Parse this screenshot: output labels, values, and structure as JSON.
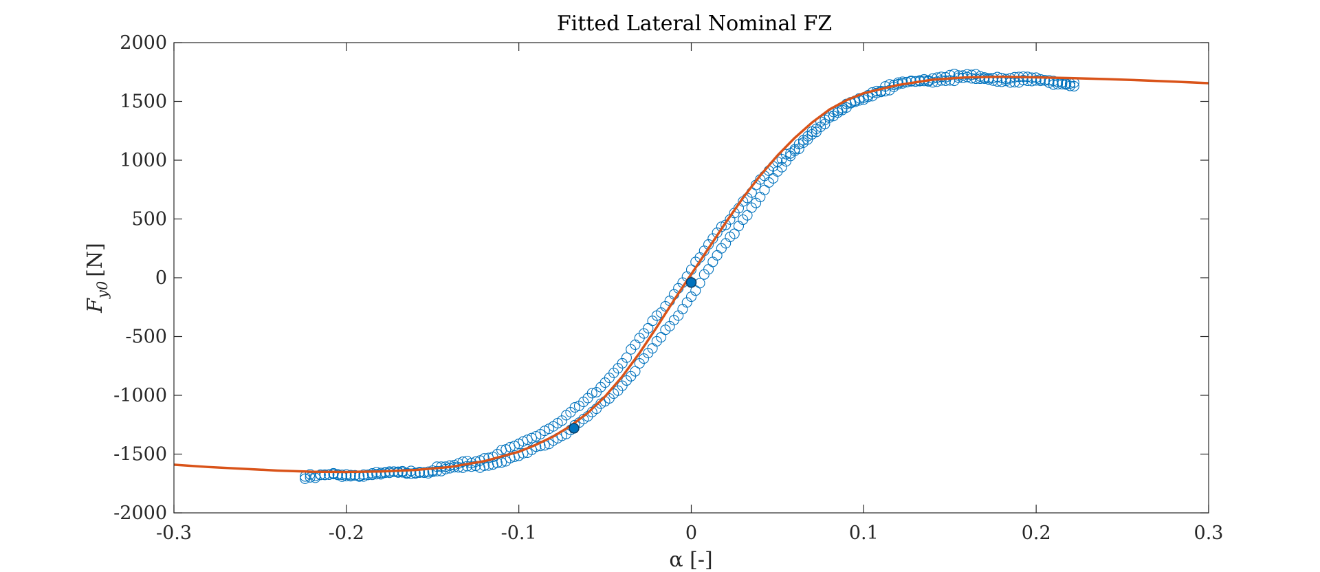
{
  "chart_data": {
    "type": "scatter",
    "title": "Fitted Lateral Nominal FZ",
    "xlabel": "α [-]",
    "ylabel": "F_y0 [N]",
    "ylabel_main": "F",
    "ylabel_sub": "y0",
    "ylabel_unit": "[N]",
    "xlim": [
      -0.3,
      0.3
    ],
    "ylim": [
      -2000,
      2000
    ],
    "xticks": [
      -0.3,
      -0.2,
      -0.1,
      0,
      0.1,
      0.2,
      0.3
    ],
    "xtick_labels": [
      "-0.3",
      "-0.2",
      "-0.1",
      "0",
      "0.1",
      "0.2",
      "0.3"
    ],
    "yticks": [
      -2000,
      -1500,
      -1000,
      -500,
      0,
      500,
      1000,
      1500,
      2000
    ],
    "ytick_labels": [
      "-2000",
      "-1500",
      "-1000",
      "-500",
      "0",
      "500",
      "1000",
      "1500",
      "2000"
    ],
    "grid": false,
    "legend": "none",
    "colors": {
      "data": "#0072BD",
      "fit": "#D95319",
      "axis": "#262626"
    },
    "series": [
      {
        "kind": "scatter-markers",
        "marker": "open-circle",
        "branch_up": {
          "x": [
            -0.224,
            -0.215,
            -0.205,
            -0.195,
            -0.185,
            -0.175,
            -0.165,
            -0.155,
            -0.145,
            -0.135,
            -0.125,
            -0.115,
            -0.105,
            -0.095,
            -0.085,
            -0.075,
            -0.065,
            -0.055,
            -0.045,
            -0.035,
            -0.025,
            -0.015,
            -0.005,
            0.005,
            0.015,
            0.025,
            0.035,
            0.045,
            0.055,
            0.065,
            0.075,
            0.085,
            0.095,
            0.105,
            0.115,
            0.125,
            0.135,
            0.145,
            0.155,
            0.165,
            0.175,
            0.185,
            0.195,
            0.205,
            0.215,
            0.222
          ],
          "y": [
            -1690,
            -1685,
            -1680,
            -1678,
            -1672,
            -1665,
            -1655,
            -1640,
            -1620,
            -1590,
            -1560,
            -1510,
            -1450,
            -1380,
            -1300,
            -1200,
            -1090,
            -960,
            -800,
            -620,
            -430,
            -230,
            -30,
            170,
            370,
            560,
            740,
            900,
            1040,
            1180,
            1310,
            1420,
            1510,
            1580,
            1630,
            1660,
            1690,
            1710,
            1720,
            1715,
            1710,
            1705,
            1695,
            1685,
            1670,
            1660
          ]
        },
        "branch_down": {
          "x": [
            0.222,
            0.215,
            0.205,
            0.195,
            0.185,
            0.175,
            0.165,
            0.155,
            0.145,
            0.135,
            0.125,
            0.115,
            0.105,
            0.095,
            0.085,
            0.075,
            0.065,
            0.055,
            0.045,
            0.035,
            0.025,
            0.015,
            0.005,
            -0.005,
            -0.015,
            -0.025,
            -0.035,
            -0.045,
            -0.055,
            -0.065,
            -0.075,
            -0.085,
            -0.095,
            -0.105,
            -0.115,
            -0.125,
            -0.135,
            -0.145,
            -0.155,
            -0.165,
            -0.175,
            -0.185,
            -0.195,
            -0.205,
            -0.215,
            -0.224
          ],
          "y": [
            1640,
            1650,
            1660,
            1670,
            1675,
            1685,
            1690,
            1690,
            1685,
            1670,
            1650,
            1610,
            1560,
            1490,
            1400,
            1290,
            1150,
            980,
            800,
            600,
            390,
            180,
            -40,
            -260,
            -460,
            -650,
            -830,
            -980,
            -1120,
            -1240,
            -1340,
            -1420,
            -1490,
            -1540,
            -1580,
            -1605,
            -1620,
            -1640,
            -1650,
            -1660,
            -1665,
            -1670,
            -1675,
            -1680,
            -1685,
            -1695
          ]
        }
      },
      {
        "kind": "fit-line",
        "x": [
          -0.3,
          -0.28,
          -0.26,
          -0.24,
          -0.22,
          -0.2,
          -0.18,
          -0.16,
          -0.14,
          -0.12,
          -0.1,
          -0.09,
          -0.08,
          -0.07,
          -0.06,
          -0.05,
          -0.04,
          -0.03,
          -0.02,
          -0.01,
          0,
          0.01,
          0.02,
          0.03,
          0.04,
          0.05,
          0.06,
          0.07,
          0.08,
          0.09,
          0.1,
          0.12,
          0.14,
          0.16,
          0.18,
          0.2,
          0.22,
          0.24,
          0.26,
          0.28,
          0.3
        ],
        "y": [
          -1590,
          -1610,
          -1625,
          -1640,
          -1650,
          -1652,
          -1648,
          -1635,
          -1610,
          -1560,
          -1480,
          -1420,
          -1350,
          -1260,
          -1150,
          -1010,
          -840,
          -640,
          -420,
          -190,
          30,
          250,
          470,
          680,
          870,
          1040,
          1190,
          1320,
          1430,
          1510,
          1570,
          1640,
          1685,
          1705,
          1710,
          1705,
          1698,
          1690,
          1680,
          1668,
          1655
        ]
      },
      {
        "kind": "filled-markers",
        "x": [
          -0.068,
          0.0
        ],
        "y": [
          -1280,
          -40
        ]
      }
    ]
  }
}
